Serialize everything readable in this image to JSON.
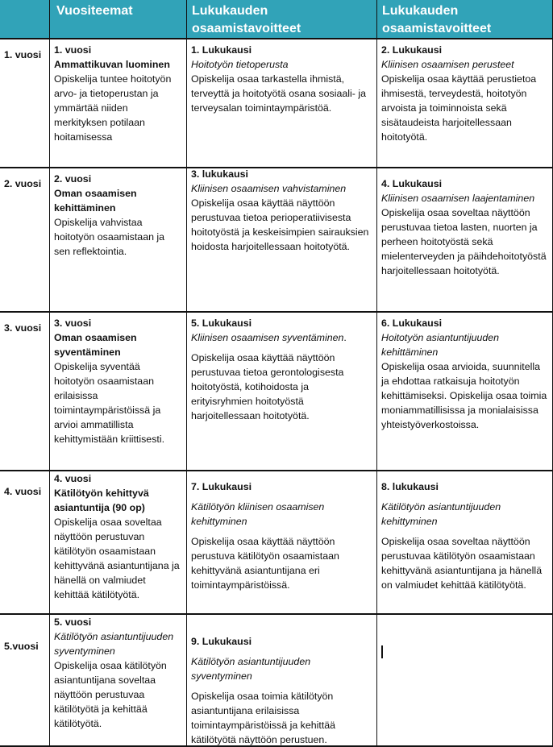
{
  "header": {
    "col0": "",
    "col1": "Vuositeemat",
    "col2": "Lukukauden osaamistavoitteet",
    "col3": "Lukukauden osaamistavoitteet"
  },
  "colors": {
    "header_bg": "#31a3b8",
    "header_text": "#ffffff",
    "border": "#111111"
  },
  "rows": [
    {
      "year": "1. vuosi",
      "cells": [
        [
          [
            {
              "t": "1. vuosi",
              "s": "b"
            }
          ],
          [
            {
              "t": "Ammattikuvan luominen",
              "s": "b"
            }
          ],
          [
            {
              "t": "Opiskelija tuntee hoitotyön arvo- ja tietoperustan ja ymmärtää niiden merkityksen potilaan hoitamisessa",
              "s": ""
            }
          ]
        ],
        [
          [
            {
              "t": "1. Lukukausi",
              "s": "b"
            }
          ],
          [
            {
              "t": "Hoitotyön tietoperusta",
              "s": "i"
            }
          ],
          [
            {
              "t": "Opiskelija osaa tarkastella ihmistä, terveyttä ja hoitotyötä osana sosiaali- ja terveysalan toimintaympäristöä.",
              "s": ""
            }
          ]
        ],
        [
          [
            {
              "t": "2. Lukukausi",
              "s": "b"
            }
          ],
          [
            {
              "t": "Kliinisen osaamisen perusteet",
              "s": "i"
            }
          ],
          [
            {
              "t": "Opiskelija osaa käyttää perustietoa ihmisestä, terveydestä, hoitotyön arvoista ja toiminnoista sekä sisätaudeista harjoitellessaan hoitotyötä.",
              "s": ""
            }
          ]
        ]
      ]
    },
    {
      "year": "2. vuosi",
      "cells": [
        [
          [
            {
              "t": "2. vuosi",
              "s": "b"
            }
          ],
          [
            {
              "t": "Oman osaamisen kehittäminen",
              "s": "b"
            }
          ],
          [
            {
              "t": "Opiskelija vahvistaa hoitotyön osaamistaan ja sen reflektointia.",
              "s": ""
            }
          ]
        ],
        [
          [
            {
              "t": "3. lukukausi",
              "s": "b"
            }
          ],
          [
            {
              "t": "Kliinisen osaamisen vahvistaminen",
              "s": "i"
            }
          ],
          [
            {
              "t": "Opiskelija osaa käyttää näyttöön perustuvaa tietoa perioperatiivisesta hoitotyöstä ja keskeisimpien sairauksien hoidosta harjoitellessaan hoitotyötä.",
              "s": ""
            }
          ]
        ],
        [
          [
            {
              "t": "4. Lukukausi",
              "s": "b"
            }
          ],
          [
            {
              "t": "Kliinisen osaamisen laajentaminen",
              "s": "i"
            },
            {
              "t": " Opiskelija osaa soveltaa näyttöön perustuvaa tietoa lasten, nuorten ja perheen hoitotyöstä sekä mielenterveyden ja päihdehoitotyöstä harjoitellessaan hoitotyötä.",
              "s": ""
            }
          ]
        ]
      ]
    },
    {
      "year": "3. vuosi",
      "cells": [
        [
          [
            {
              "t": "3. vuosi",
              "s": "b"
            }
          ],
          [
            {
              "t": "Oman osaamisen syventäminen",
              "s": "b"
            }
          ],
          [
            {
              "t": "Opiskelija syventää hoitotyön osaamistaan erilaisissa toimintaympäristöissä ja arvioi ammatillista kehittymistään kriittisesti.",
              "s": ""
            }
          ]
        ],
        [
          [
            {
              "t": "5. Lukukausi",
              "s": "b"
            }
          ],
          [
            {
              "t": "Kliinisen osaamisen syventäminen",
              "s": "i"
            },
            {
              "t": ".",
              "s": ""
            }
          ],
          [
            {
              "t": "Opiskelija osaa käyttää näyttöön perustuvaa tietoa gerontologisesta hoitotyöstä, kotihoidosta ja erityisryhmien hoitotyöstä harjoitellessaan hoitotyötä.",
              "s": "",
              "gap": true
            }
          ]
        ],
        [
          [
            {
              "t": "6. Lukukausi",
              "s": "b"
            }
          ],
          [
            {
              "t": "Hoitotyön asiantuntijuuden kehittäminen",
              "s": "i"
            }
          ],
          [
            {
              "t": "Opiskelija osaa arvioida, suunnitella ja ehdottaa ratkaisuja hoitotyön kehittämiseksi. Opiskelija osaa toimia moniammatillisissa ja monialaisissa yhteistyöverkostoissa.",
              "s": ""
            }
          ]
        ]
      ]
    },
    {
      "year": "4. vuosi",
      "cells": [
        [
          [
            {
              "t": "4. vuosi",
              "s": "b"
            }
          ],
          [
            {
              "t": " Kätilötyön kehittyvä asiantuntija (90 op)",
              "s": "b"
            }
          ],
          [
            {
              "t": "Opiskelija osaa soveltaa näyttöön perustuvan kätilötyön osaamistaan kehittyvänä asiantuntijana ja hänellä on valmiudet kehittää kätilötyötä.",
              "s": ""
            }
          ]
        ],
        [
          [
            {
              "t": "7. Lukukausi",
              "s": "b"
            }
          ],
          [
            {
              "t": " Kätilötyön kliinisen osaamisen kehittyminen",
              "s": "i",
              "gap": true
            }
          ],
          [
            {
              "t": "Opiskelija osaa käyttää näyttöön perustuva kätilötyön osaamistaan kehittyvänä asiantuntijana eri toimintaympäristöissä.",
              "s": "",
              "gap": true
            }
          ]
        ],
        [
          [
            {
              "t": "8. lukukausi",
              "s": "b"
            }
          ],
          [
            {
              "t": " Kätilötyön asiantuntijuuden kehittyminen",
              "s": "i",
              "gap": true
            }
          ],
          [
            {
              "t": "Opiskelija osaa soveltaa näyttöön perustuvaa kätilötyön osaamistaan kehittyvänä asiantuntijana ja hänellä on valmiudet kehittää kätilötyötä.",
              "s": "",
              "gap": true
            }
          ]
        ]
      ]
    },
    {
      "year": "5.vuosi",
      "cells": [
        [
          [
            {
              "t": "5. vuosi",
              "s": "b"
            }
          ],
          [
            {
              "t": "Kätilötyön asiantuntijuuden syventyminen",
              "s": "i"
            }
          ],
          [
            {
              "t": "Opiskelija osaa kätilötyön asiantuntijana soveltaa näyttöön perustuvaa kätilötyötä ja kehittää kätilötyötä.",
              "s": ""
            }
          ]
        ],
        [
          [
            {
              "t": "9. Lukukausi",
              "s": "b"
            }
          ],
          [
            {
              "t": "Kätilötyön asiantuntijuuden syventyminen",
              "s": "i",
              "gap": true
            }
          ],
          [
            {
              "t": "Opiskelija osaa toimia kätilötyön asiantuntijana erilaisissa toimintaympäristöissä ja kehittää kätilötyötä näyttöön perustuen.",
              "s": "",
              "gap": true
            }
          ]
        ],
        []
      ]
    }
  ]
}
